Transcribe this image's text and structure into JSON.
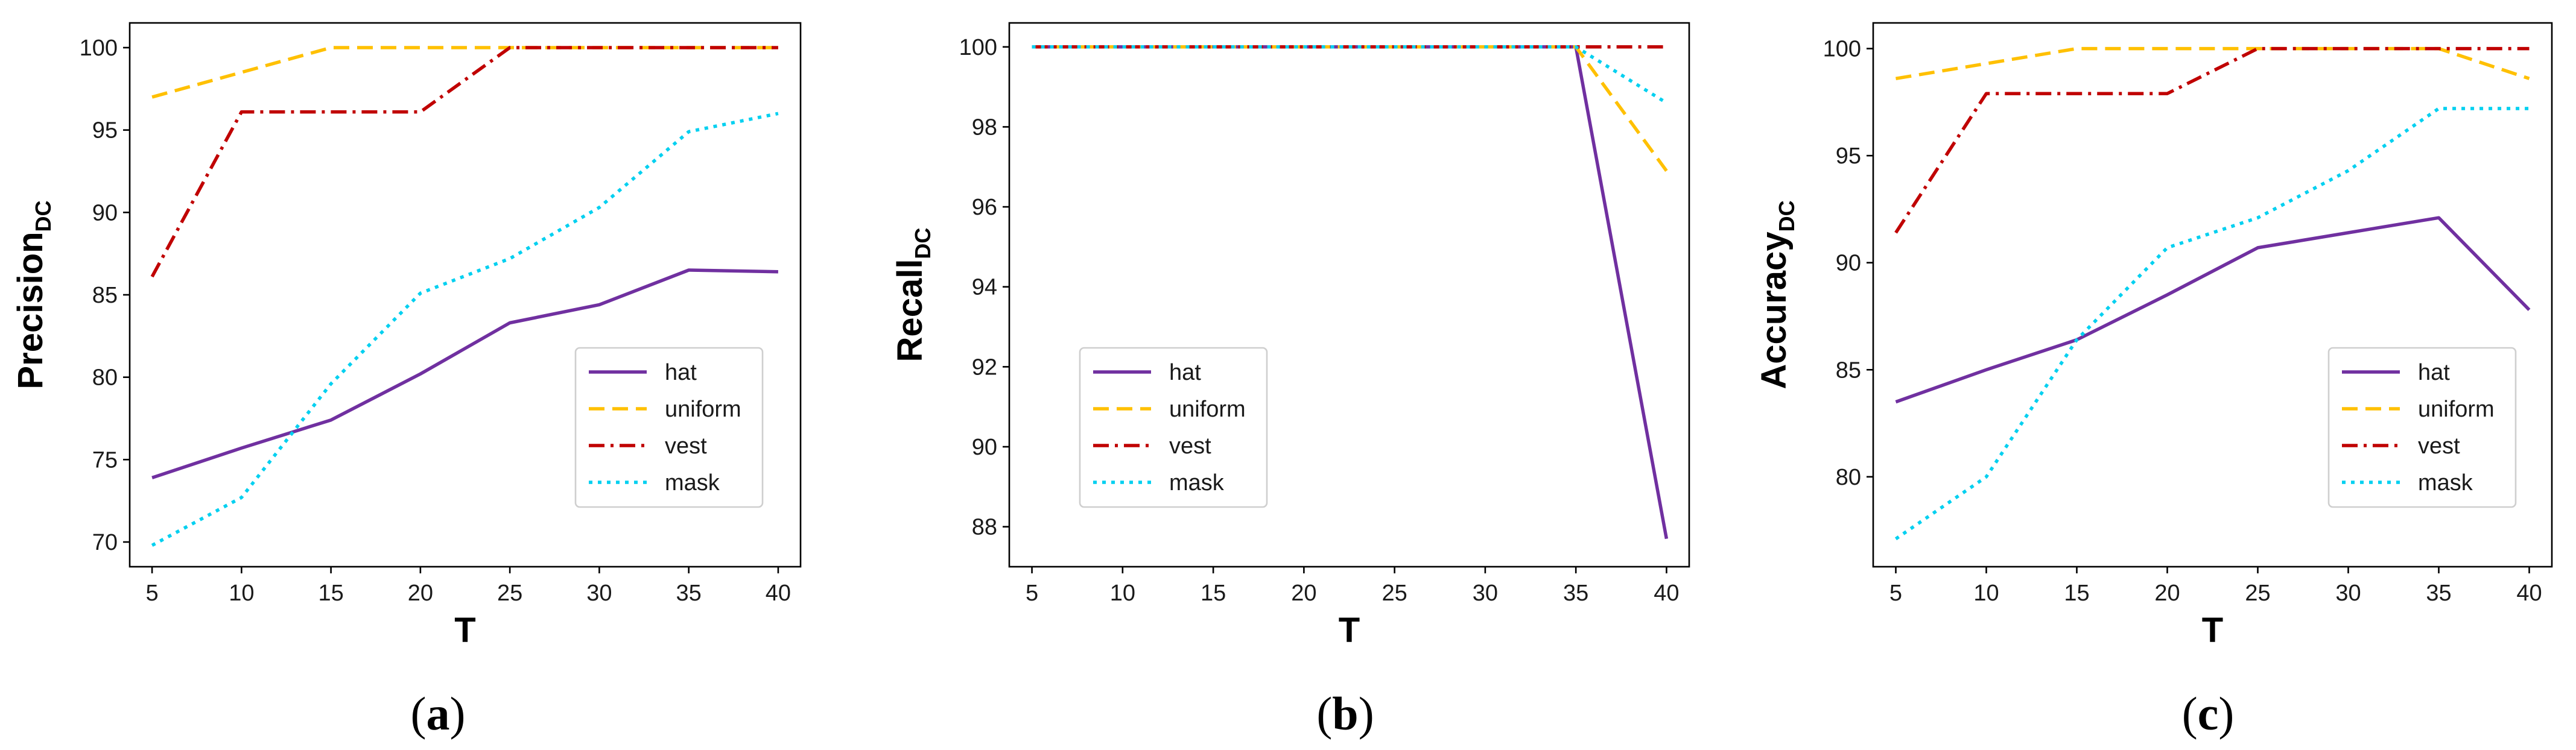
{
  "series_styles": [
    {
      "name": "hat",
      "color": "#7030A0",
      "dash": "solid"
    },
    {
      "name": "uniform",
      "color": "#FFC000",
      "dash": "dashed"
    },
    {
      "name": "vest",
      "color": "#C00000",
      "dash": "dashdot"
    },
    {
      "name": "mask",
      "color": "#00D0F0",
      "dash": "dotted"
    }
  ],
  "chart_data": [
    {
      "type": "line",
      "panel_label": {
        "open": "(",
        "letter": "a",
        "close": ")"
      },
      "xlabel": "T",
      "ylabel": {
        "main": "Precision",
        "sub": "DC"
      },
      "x": [
        5,
        10,
        15,
        20,
        25,
        30,
        35,
        40
      ],
      "xticks": [
        "5",
        "10",
        "15",
        "20",
        "25",
        "30",
        "35",
        "40"
      ],
      "xlim": [
        3.75,
        41.25
      ],
      "ylim": [
        68.5,
        101.5
      ],
      "yticks": [
        70,
        75,
        80,
        85,
        90,
        95,
        100
      ],
      "ytick_labels": [
        "70",
        "75",
        "80",
        "85",
        "90",
        "95",
        "100"
      ],
      "grid": false,
      "legend": {
        "position": "lower-right",
        "entries": [
          "hat",
          "uniform",
          "vest",
          "mask"
        ]
      },
      "series": [
        {
          "name": "hat",
          "values": [
            73.9,
            75.7,
            77.4,
            80.2,
            83.3,
            84.4,
            86.5,
            86.4
          ]
        },
        {
          "name": "uniform",
          "values": [
            97.0,
            98.5,
            100.0,
            100.0,
            100.0,
            100.0,
            100.0,
            100.0
          ]
        },
        {
          "name": "vest",
          "values": [
            86.1,
            96.1,
            96.1,
            96.1,
            100.0,
            100.0,
            100.0,
            100.0
          ]
        },
        {
          "name": "mask",
          "values": [
            69.8,
            72.7,
            79.6,
            85.1,
            87.2,
            90.3,
            94.9,
            96.0
          ]
        }
      ]
    },
    {
      "type": "line",
      "panel_label": {
        "open": "(",
        "letter": "b",
        "close": ")"
      },
      "xlabel": "T",
      "ylabel": {
        "main": "Recall",
        "sub": "DC"
      },
      "x": [
        5,
        10,
        15,
        20,
        25,
        30,
        35,
        40
      ],
      "xticks": [
        "5",
        "10",
        "15",
        "20",
        "25",
        "30",
        "35",
        "40"
      ],
      "xlim": [
        3.75,
        41.25
      ],
      "ylim": [
        87.0,
        100.6
      ],
      "yticks": [
        88,
        90,
        92,
        94,
        96,
        98,
        100
      ],
      "ytick_labels": [
        "88",
        "90",
        "92",
        "94",
        "96",
        "98",
        "100"
      ],
      "grid": false,
      "legend": {
        "position": "lower-left",
        "entries": [
          "hat",
          "uniform",
          "vest",
          "mask"
        ]
      },
      "series": [
        {
          "name": "hat",
          "values": [
            100.0,
            100.0,
            100.0,
            100.0,
            100.0,
            100.0,
            100.0,
            87.7
          ]
        },
        {
          "name": "uniform",
          "values": [
            100.0,
            100.0,
            100.0,
            100.0,
            100.0,
            100.0,
            100.0,
            96.9
          ]
        },
        {
          "name": "vest",
          "values": [
            100.0,
            100.0,
            100.0,
            100.0,
            100.0,
            100.0,
            100.0,
            100.0
          ]
        },
        {
          "name": "mask",
          "values": [
            100.0,
            100.0,
            100.0,
            100.0,
            100.0,
            100.0,
            100.0,
            98.6
          ]
        }
      ]
    },
    {
      "type": "line",
      "panel_label": {
        "open": "(",
        "letter": "c",
        "close": ")"
      },
      "xlabel": "T",
      "ylabel": {
        "main": "Accuracy",
        "sub": "DC"
      },
      "x": [
        5,
        10,
        15,
        20,
        25,
        30,
        35,
        40
      ],
      "xticks": [
        "5",
        "10",
        "15",
        "20",
        "25",
        "30",
        "35",
        "40"
      ],
      "xlim": [
        3.75,
        41.25
      ],
      "ylim": [
        75.8,
        101.2
      ],
      "yticks": [
        80,
        85,
        90,
        95,
        100
      ],
      "ytick_labels": [
        "80",
        "85",
        "90",
        "95",
        "100"
      ],
      "grid": false,
      "legend": {
        "position": "lower-right",
        "entries": [
          "hat",
          "uniform",
          "vest",
          "mask"
        ]
      },
      "series": [
        {
          "name": "hat",
          "values": [
            83.5,
            85.0,
            86.4,
            88.5,
            90.7,
            91.4,
            92.1,
            87.8
          ]
        },
        {
          "name": "uniform",
          "values": [
            98.6,
            99.3,
            100.0,
            100.0,
            100.0,
            100.0,
            100.0,
            98.6
          ]
        },
        {
          "name": "vest",
          "values": [
            91.4,
            97.9,
            97.9,
            97.9,
            100.0,
            100.0,
            100.0,
            100.0
          ]
        },
        {
          "name": "mask",
          "values": [
            77.1,
            80.0,
            86.4,
            90.7,
            92.1,
            94.3,
            97.2,
            97.2
          ]
        }
      ]
    }
  ]
}
